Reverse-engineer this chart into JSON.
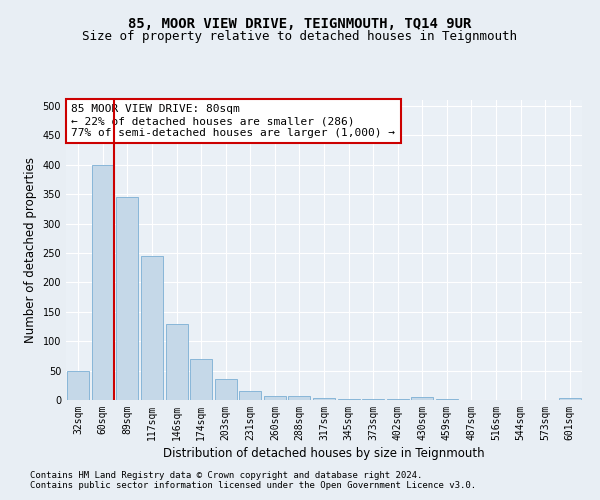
{
  "title": "85, MOOR VIEW DRIVE, TEIGNMOUTH, TQ14 9UR",
  "subtitle": "Size of property relative to detached houses in Teignmouth",
  "xlabel": "Distribution of detached houses by size in Teignmouth",
  "ylabel": "Number of detached properties",
  "categories": [
    "32sqm",
    "60sqm",
    "89sqm",
    "117sqm",
    "146sqm",
    "174sqm",
    "203sqm",
    "231sqm",
    "260sqm",
    "288sqm",
    "317sqm",
    "345sqm",
    "373sqm",
    "402sqm",
    "430sqm",
    "459sqm",
    "487sqm",
    "516sqm",
    "544sqm",
    "573sqm",
    "601sqm"
  ],
  "values": [
    50,
    400,
    345,
    245,
    130,
    70,
    36,
    15,
    7,
    7,
    3,
    2,
    1,
    1,
    5,
    2,
    0,
    0,
    0,
    0,
    3
  ],
  "bar_color": "#c5d8e8",
  "bar_edge_color": "#7bafd4",
  "property_line_color": "#cc0000",
  "annotation_text": "85 MOOR VIEW DRIVE: 80sqm\n← 22% of detached houses are smaller (286)\n77% of semi-detached houses are larger (1,000) →",
  "annotation_box_color": "#ffffff",
  "annotation_box_edge": "#cc0000",
  "ylim": [
    0,
    510
  ],
  "yticks": [
    0,
    50,
    100,
    150,
    200,
    250,
    300,
    350,
    400,
    450,
    500
  ],
  "footnote1": "Contains HM Land Registry data © Crown copyright and database right 2024.",
  "footnote2": "Contains public sector information licensed under the Open Government Licence v3.0.",
  "bg_color": "#e8eef4",
  "plot_bg_color": "#eaf0f6",
  "grid_color": "#ffffff",
  "title_fontsize": 10,
  "subtitle_fontsize": 9,
  "axis_label_fontsize": 8.5,
  "tick_fontsize": 7,
  "footnote_fontsize": 6.5
}
